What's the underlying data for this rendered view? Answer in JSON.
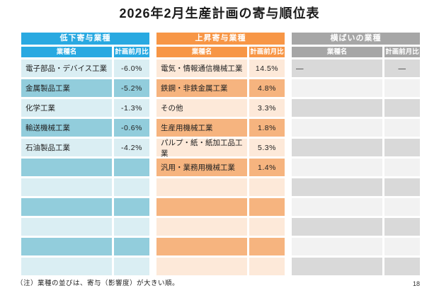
{
  "page": {
    "title": "2026年2月生産計画の寄与順位表",
    "note": "（注）業種の並びは、寄与（影響度）が大きい順。",
    "page_number": "18"
  },
  "columns": {
    "name": "業種名",
    "value": "計画前月比"
  },
  "tables": [
    {
      "id": "decline",
      "title": "低下寄与業種",
      "theme": {
        "header": "#29A9E1",
        "light": "#DAEEF3",
        "dark": "#92CDDC"
      },
      "first_row_shade": "light",
      "total_rows": 11,
      "rows": [
        {
          "name": "電子部品・デバイス工業",
          "value": "-6.0%"
        },
        {
          "name": "金属製品工業",
          "value": "-5.2%"
        },
        {
          "name": "化学工業",
          "value": "-1.3%"
        },
        {
          "name": "輸送機械工業",
          "value": "-0.6%"
        },
        {
          "name": "石油製品工業",
          "value": "-4.2%"
        }
      ]
    },
    {
      "id": "rise",
      "title": "上昇寄与業種",
      "theme": {
        "header": "#F79646",
        "light": "#FDE9D9",
        "dark": "#F6B47F"
      },
      "first_row_shade": "light",
      "total_rows": 11,
      "rows": [
        {
          "name": "電気・情報通信機械工業",
          "value": "14.5%"
        },
        {
          "name": "鉄鋼・非鉄金属工業",
          "value": "4.8%"
        },
        {
          "name": "その他",
          "value": "3.3%"
        },
        {
          "name": "生産用機械工業",
          "value": "1.8%"
        },
        {
          "name": "パルプ・紙・紙加工品工業",
          "value": "5.3%"
        },
        {
          "name": "汎用・業務用機械工業",
          "value": "1.4%"
        }
      ]
    },
    {
      "id": "flat",
      "title": "横ばいの業種",
      "theme": {
        "header": "#A6A6A6",
        "light": "#F2F2F2",
        "dark": "#D9D9D9"
      },
      "first_row_shade": "dark",
      "total_rows": 11,
      "rows": [
        {
          "name": "―",
          "value": "―"
        }
      ]
    }
  ]
}
